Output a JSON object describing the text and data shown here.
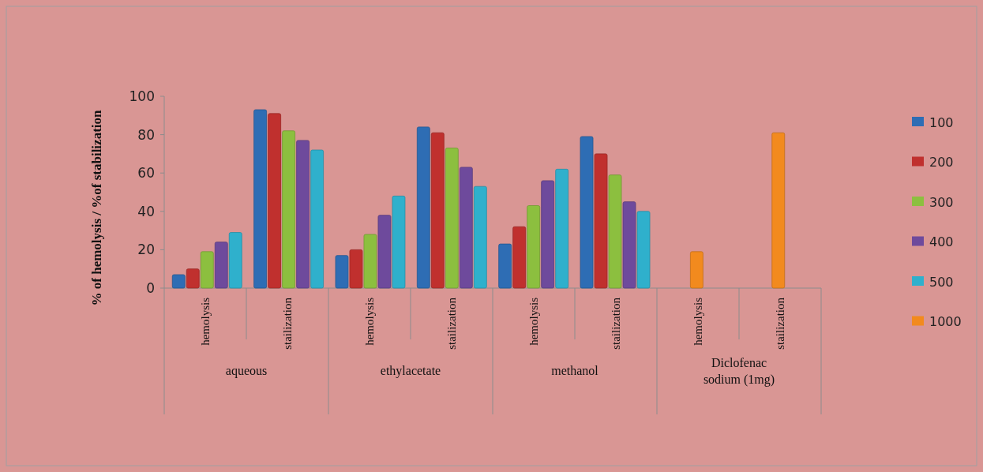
{
  "chart_data": {
    "type": "bar",
    "ylabel": "% of hemolysis / %of stabilization",
    "categories": [
      "hemolysis",
      "stailization",
      "hemolysis",
      "stailization",
      "hemolysis",
      "stailization",
      "hemolysis",
      "stailization"
    ],
    "series": [
      {
        "name": "100",
        "color": "#2e6db4",
        "values": [
          7,
          93,
          17,
          84,
          23,
          79,
          null,
          null
        ]
      },
      {
        "name": "200",
        "color": "#c0302e",
        "values": [
          10,
          91,
          20,
          81,
          32,
          70,
          null,
          null
        ]
      },
      {
        "name": "300",
        "color": "#8cbf3f",
        "values": [
          19,
          82,
          28,
          73,
          43,
          59,
          null,
          null
        ]
      },
      {
        "name": "400",
        "color": "#6e4a9c",
        "values": [
          24,
          77,
          38,
          63,
          56,
          45,
          null,
          null
        ]
      },
      {
        "name": "500",
        "color": "#2fb0cc",
        "values": [
          29,
          72,
          48,
          53,
          62,
          40,
          null,
          null
        ]
      },
      {
        "name": "1000",
        "color": "#f28a1e",
        "values": [
          null,
          null,
          null,
          null,
          null,
          null,
          19,
          81
        ]
      }
    ],
    "ylim": [
      0,
      100
    ],
    "yticks": [
      0,
      20,
      40,
      60,
      80,
      100
    ],
    "grid": false,
    "legend": "right",
    "annotations": [
      "aqueous",
      "ethylacetate",
      "methanol",
      "Diclofenac sodium (1mg)"
    ]
  }
}
